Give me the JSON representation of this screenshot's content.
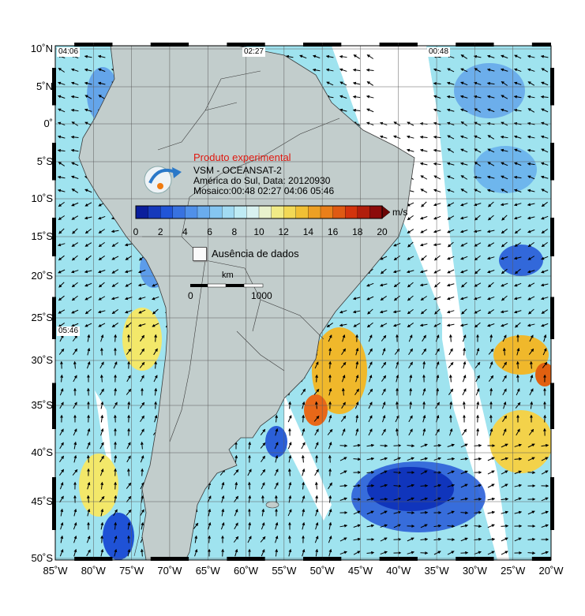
{
  "lat_labels": [
    "10˚N",
    "5˚N",
    "0˚",
    "5˚S",
    "10˚S",
    "15˚S",
    "20˚S",
    "25˚S",
    "30˚S",
    "35˚S",
    "40˚S",
    "45˚S",
    "50˚S"
  ],
  "lon_labels": [
    "85˚W",
    "80˚W",
    "75˚W",
    "70˚W",
    "65˚W",
    "60˚W",
    "55˚W",
    "50˚W",
    "45˚W",
    "40˚W",
    "35˚W",
    "30˚W",
    "25˚W",
    "20˚W"
  ],
  "pass_times": {
    "t1": "04:06",
    "t2": "02:27",
    "t3": "00:48",
    "t4": "05:46"
  },
  "info": {
    "title": "Produto experimental",
    "line1": "VSM - OCEANSAT-2",
    "line2": "América do Sul, Data: 20120930",
    "line3": "Mosaico:00:48 02:27 04:06 05:46"
  },
  "colorbar": {
    "ticks": [
      "0",
      "2",
      "4",
      "6",
      "8",
      "10",
      "12",
      "14",
      "16",
      "18",
      "20"
    ],
    "units": "m/s",
    "colors": [
      "#0a1e9c",
      "#1f52d6",
      "#4b8ae8",
      "#7cc0f0",
      "#b4e8f5",
      "#e6f6f0",
      "#f3e86a",
      "#f0b82b",
      "#e87818",
      "#d2300c",
      "#8c0b0b"
    ]
  },
  "legend": {
    "no_data": "Ausência de dados"
  },
  "scalebar": {
    "label": "km",
    "start": "0",
    "end": "1000"
  },
  "colors": {
    "ocean": "#c9dcdb",
    "land": "#c2cdcc",
    "border": "#3a3a3a",
    "grid": "#5a5a5a"
  }
}
